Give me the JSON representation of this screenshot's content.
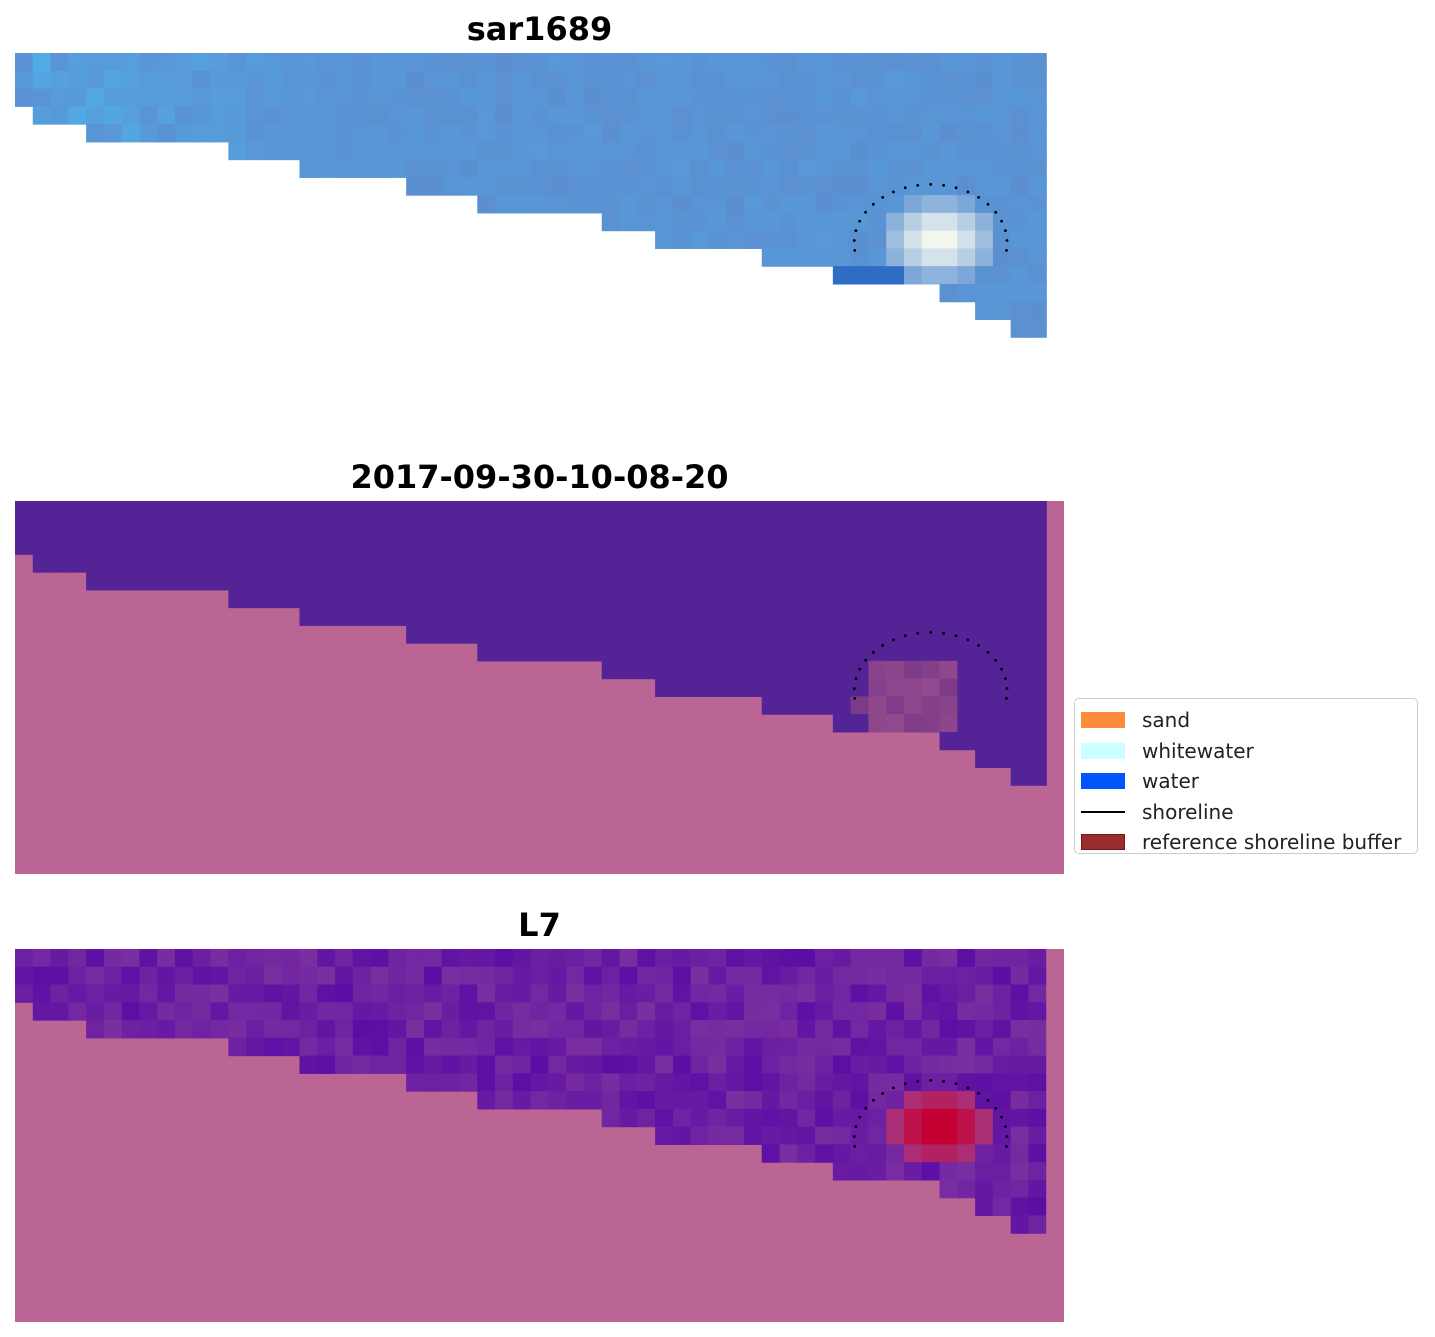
{
  "panels": [
    {
      "title": "sar1689",
      "kind": "rgb"
    },
    {
      "title": "2017-09-30-10-08-20",
      "kind": "classification"
    },
    {
      "title": "L7",
      "kind": "index"
    }
  ],
  "legend": {
    "items": [
      {
        "label": "sand",
        "color": "#ff8c3a",
        "shape": "patch"
      },
      {
        "label": "whitewater",
        "color": "#ccffff",
        "shape": "patch"
      },
      {
        "label": "water",
        "color": "#0055ff",
        "shape": "patch"
      },
      {
        "label": "shoreline",
        "color": "#000000",
        "shape": "line"
      },
      {
        "label": "reference shoreline buffer",
        "color": "#9b2c2c",
        "shape": "patch"
      }
    ]
  },
  "colors": {
    "background_land": "#bb6595",
    "water_class": "#542496",
    "buffer_class": "#8a4584",
    "index_hot": "#c50032"
  }
}
